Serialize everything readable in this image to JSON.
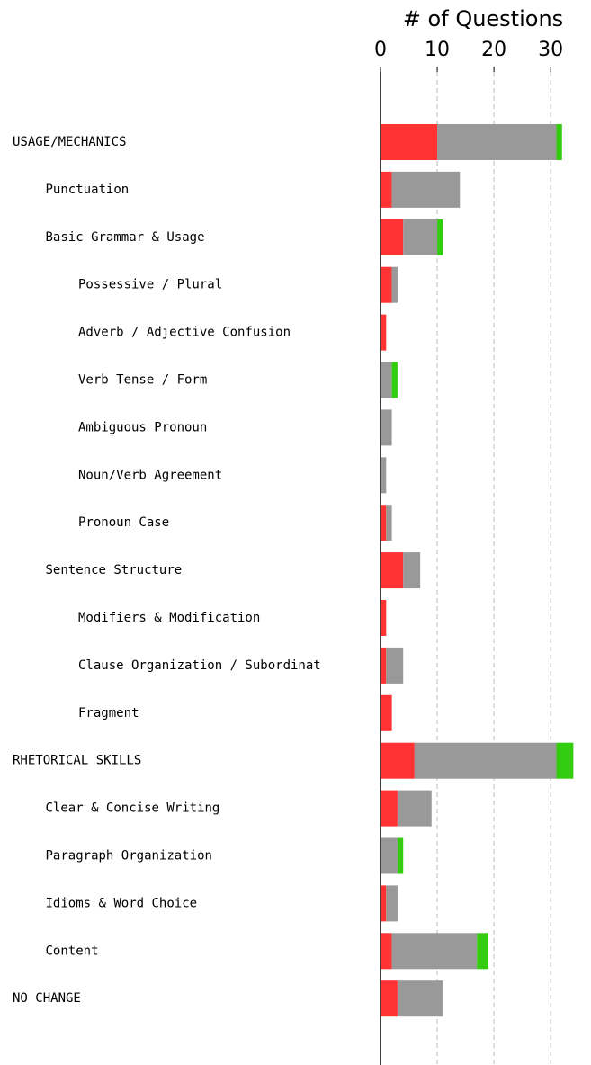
{
  "chart_data": {
    "type": "stacked_barh",
    "xlabel": "# of Questions",
    "categories": [
      "USAGE/MECHANICS",
      "Punctuation",
      "Basic Grammar & Usage",
      "Possessive / Plural",
      "Adverb / Adjective Confusion",
      "Verb Tense / Form",
      "Ambiguous Pronoun",
      "Noun/Verb Agreement",
      "Pronoun Case",
      "Sentence Structure",
      "Modifiers & Modification",
      "Clause Organization / Subordinat",
      "Fragment",
      "RHETORICAL SKILLS",
      "Clear & Concise Writing",
      "Paragraph Organization",
      "Idioms & Word Choice",
      "Content",
      "NO CHANGE"
    ],
    "series": [
      {
        "color": "#ff3333",
        "values": [
          10,
          2,
          4,
          2,
          1,
          0,
          0,
          0,
          1,
          4,
          1,
          1,
          2,
          6,
          3,
          0,
          1,
          2,
          3
        ]
      },
      {
        "color": "#999999",
        "values": [
          21,
          12,
          6,
          1,
          0,
          2,
          2,
          1,
          1,
          3,
          0,
          3,
          0,
          25,
          6,
          3,
          2,
          15,
          8
        ]
      },
      {
        "color": "#33cc11",
        "values": [
          1,
          0,
          1,
          0,
          0,
          1,
          0,
          0,
          0,
          0,
          0,
          0,
          0,
          3,
          0,
          1,
          0,
          2,
          0
        ]
      }
    ],
    "xlim": [
      0,
      36
    ],
    "xticks": [
      0,
      10,
      20,
      30
    ],
    "grid": true
  }
}
